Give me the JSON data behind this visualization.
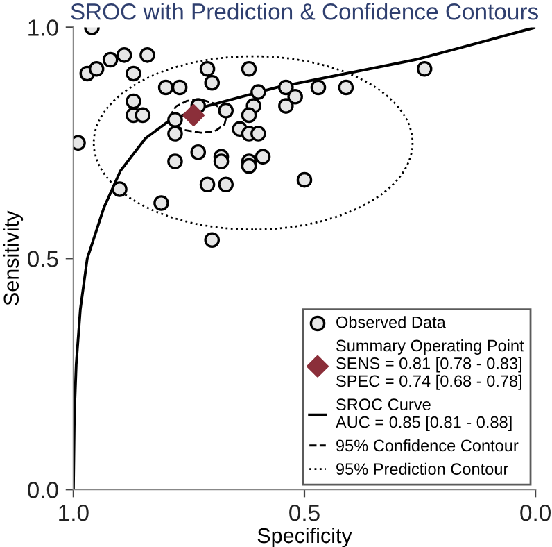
{
  "chart_data": {
    "type": "scatter",
    "title": "SROC with Prediction & Confidence Contours",
    "xlabel": "Specificity",
    "ylabel": "Sensitivity",
    "xlim": [
      1.0,
      0.0
    ],
    "xticks": [
      {
        "value": 1.0,
        "label": "1.0"
      },
      {
        "value": 0.5,
        "label": "0.5"
      },
      {
        "value": 0.0,
        "label": "0.0"
      }
    ],
    "ylim": [
      0.0,
      1.0
    ],
    "yticks": [
      {
        "value": 0.0,
        "label": "0.0"
      },
      {
        "value": 0.5,
        "label": "0.5"
      },
      {
        "value": 1.0,
        "label": "1.0"
      }
    ],
    "grid": false,
    "legend": "bottom right",
    "series": [
      {
        "name": "Observed Data",
        "marker": "circle",
        "color": "#000000",
        "x": [
          0.96,
          0.97,
          0.95,
          0.92,
          0.89,
          0.84,
          0.87,
          0.71,
          0.62,
          0.8,
          0.77,
          0.7,
          0.87,
          0.87,
          0.85,
          0.73,
          0.78,
          0.67,
          0.6,
          0.78,
          0.61,
          0.62,
          0.64,
          0.62,
          0.6,
          0.99,
          0.73,
          0.68,
          0.68,
          0.78,
          0.62,
          0.59,
          0.62,
          0.9,
          0.71,
          0.67,
          0.81,
          0.7,
          0.24,
          0.54,
          0.52,
          0.54,
          0.47,
          0.41,
          0.5
        ],
        "values": [
          1.0,
          0.9,
          0.91,
          0.93,
          0.94,
          0.94,
          0.9,
          0.91,
          0.91,
          0.87,
          0.87,
          0.88,
          0.84,
          0.81,
          0.81,
          0.83,
          0.8,
          0.82,
          0.86,
          0.77,
          0.83,
          0.81,
          0.78,
          0.77,
          0.77,
          0.75,
          0.73,
          0.72,
          0.71,
          0.71,
          0.71,
          0.72,
          0.7,
          0.65,
          0.66,
          0.66,
          0.62,
          0.54,
          0.91,
          0.87,
          0.85,
          0.83,
          0.87,
          0.87,
          0.67
        ]
      },
      {
        "name": "Summary Operating Point\nSENS = 0.81 [0.78 - 0.83]\nSPEC = 0.74 [0.68 - 0.78]",
        "type": "scatter",
        "marker": "diamond",
        "color": "#8b2f3a",
        "x": [
          0.74
        ],
        "values": [
          0.81
        ]
      },
      {
        "name": "SROC Curve\nAUC = 0.85 [0.81 - 0.88]",
        "type": "line",
        "line_style": "solid",
        "color": "#000000",
        "x": [
          1.0,
          0.998,
          0.994,
          0.985,
          0.97,
          0.934,
          0.898,
          0.844,
          0.79,
          0.71,
          0.56,
          0.41,
          0.26,
          0.11,
          0.0
        ],
        "values": [
          0.0,
          0.16,
          0.27,
          0.39,
          0.5,
          0.61,
          0.69,
          0.76,
          0.8,
          0.83,
          0.87,
          0.9,
          0.93,
          0.97,
          1.0
        ]
      },
      {
        "name": "95% Confidence Contour",
        "type": "line",
        "line_style": "dashed",
        "color": "#000000",
        "x": [
          0.793,
          0.778,
          0.754,
          0.724,
          0.694,
          0.673,
          0.67
        ],
        "values": [
          0.805,
          0.829,
          0.841,
          0.844,
          0.835,
          0.814,
          0.802
        ]
      },
      {
        "type": "line",
        "line_style": "dashed",
        "color": "#000000",
        "x": [
          0.67,
          0.673,
          0.694,
          0.724,
          0.76,
          0.784,
          0.793
        ],
        "values": [
          0.802,
          0.79,
          0.775,
          0.772,
          0.778,
          0.79,
          0.805
        ]
      }
    ],
    "annotations": [
      "95% Prediction Contour"
    ]
  }
}
